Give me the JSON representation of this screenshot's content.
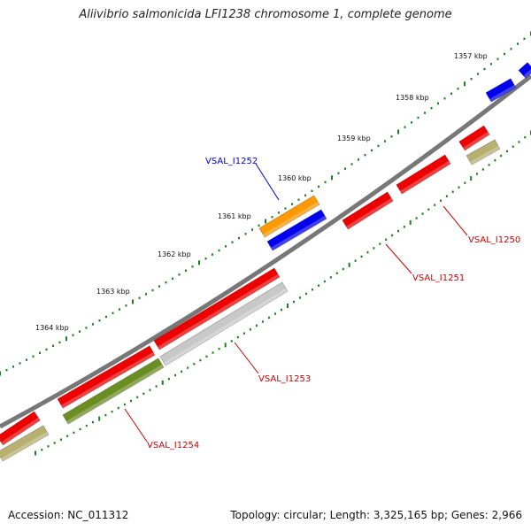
{
  "title": "Aliivibrio salmonicida LFI1238 chromosome 1, complete genome",
  "footer": {
    "accession": "Accession: NC_011312",
    "summary": "Topology: circular; Length: 3,325,165 bp; Genes: 2,966"
  },
  "ticks": [
    {
      "label": "1357 kbp"
    },
    {
      "label": "1358 kbp"
    },
    {
      "label": "1359 kbp"
    },
    {
      "label": "1360 kbp"
    },
    {
      "label": "1361 kbp"
    },
    {
      "label": "1362 kbp"
    },
    {
      "label": "1363 kbp"
    },
    {
      "label": "1364 kbp"
    }
  ],
  "genes": [
    {
      "label": "VSAL_I1250",
      "color": "#cc0000"
    },
    {
      "label": "VSAL_I1251",
      "color": "#cc0000"
    },
    {
      "label": "VSAL_I1252",
      "color": "#0000cc"
    },
    {
      "label": "VSAL_I1253",
      "color": "#cc0000"
    },
    {
      "label": "VSAL_I1254",
      "color": "#cc0000"
    }
  ],
  "colors": {
    "backbone": "#777777",
    "cds_forward": "#ee0000",
    "cds_reverse": "#ee0000",
    "category_orange": "#ff9900",
    "category_blue": "#0000ee",
    "category_olive": "#b8b070",
    "category_green": "#6b8e23",
    "category_grey": "#c8c8c8",
    "tick": "#1e7d1e"
  }
}
